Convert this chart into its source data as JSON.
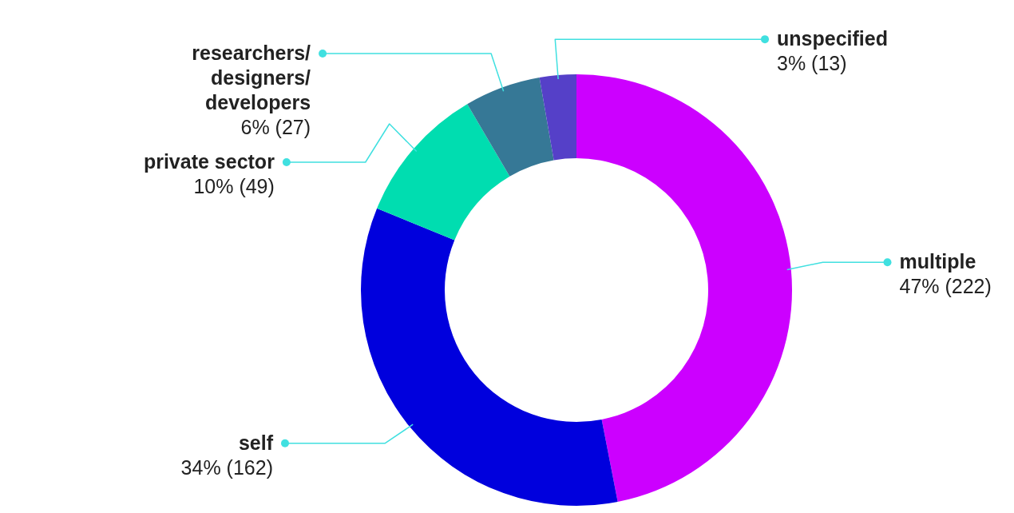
{
  "chart_data": {
    "type": "donut",
    "categories": [
      "multiple",
      "self",
      "private sector",
      "researchers/designers/developers",
      "unspecified"
    ],
    "values": [
      222,
      162,
      49,
      27,
      13
    ],
    "value_labels": [
      "47% (222)",
      "34% (162)",
      "10% (49)",
      "6% (27)",
      "3% (13)"
    ],
    "colors": [
      "#cc00ff",
      "#0000dd",
      "#00ddb0",
      "#367896",
      "#5540c8"
    ],
    "legend": false
  }
}
